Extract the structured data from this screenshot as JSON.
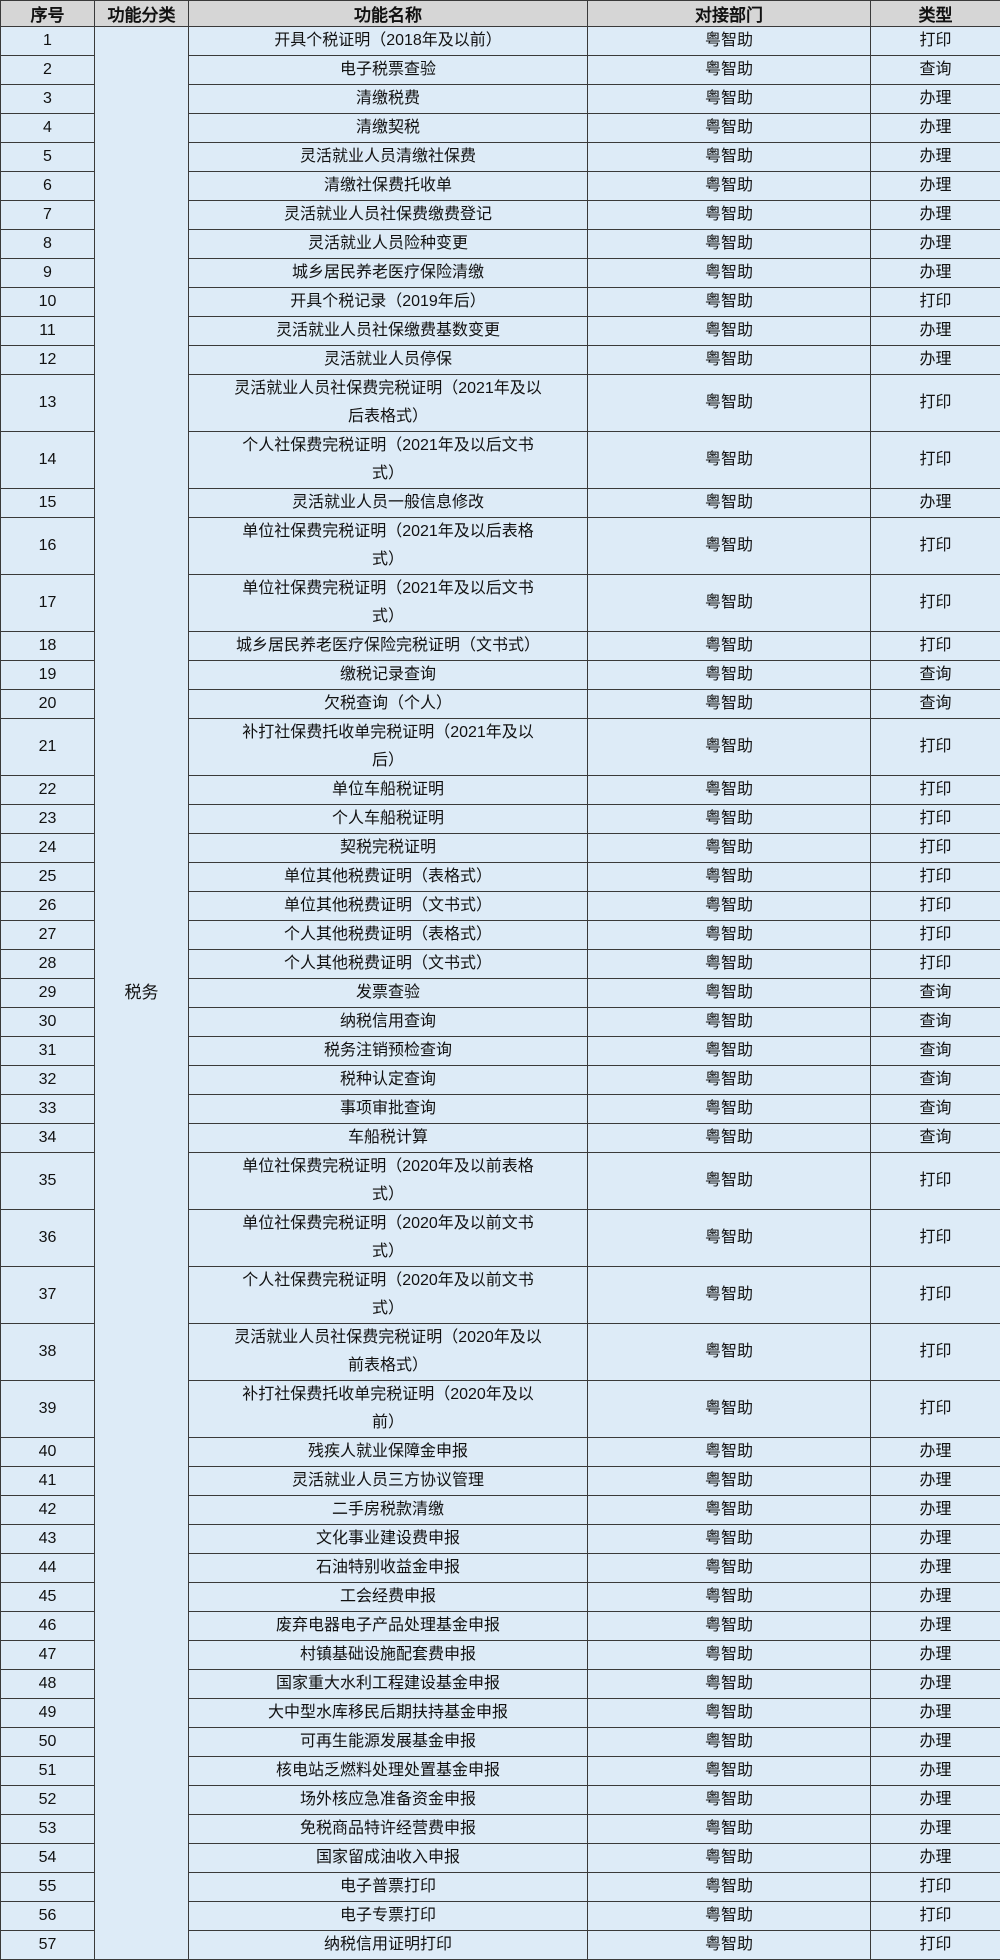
{
  "headers": [
    "序号",
    "功能分类",
    "功能名称",
    "对接部门",
    "类型"
  ],
  "category": "税务",
  "colors": {
    "header_bg": "#d6d6d6",
    "cell_bg": "#ddebf7",
    "border": "#3a3a3a"
  },
  "rows": [
    [
      "1",
      "开具个税证明（2018年及以前）",
      "粤智助",
      "打印"
    ],
    [
      "2",
      "电子税票查验",
      "粤智助",
      "查询"
    ],
    [
      "3",
      "清缴税费",
      "粤智助",
      "办理"
    ],
    [
      "4",
      "清缴契税",
      "粤智助",
      "办理"
    ],
    [
      "5",
      "灵活就业人员清缴社保费",
      "粤智助",
      "办理"
    ],
    [
      "6",
      "清缴社保费托收单",
      "粤智助",
      "办理"
    ],
    [
      "7",
      "灵活就业人员社保费缴费登记",
      "粤智助",
      "办理"
    ],
    [
      "8",
      "灵活就业人员险种变更",
      "粤智助",
      "办理"
    ],
    [
      "9",
      "城乡居民养老医疗保险清缴",
      "粤智助",
      "办理"
    ],
    [
      "10",
      "开具个税记录（2019年后）",
      "粤智助",
      "打印"
    ],
    [
      "11",
      "灵活就业人员社保缴费基数变更",
      "粤智助",
      "办理"
    ],
    [
      "12",
      "灵活就业人员停保",
      "粤智助",
      "办理"
    ],
    [
      "13",
      "灵活就业人员社保费完税证明（2021年及以\n后表格式）",
      "粤智助",
      "打印"
    ],
    [
      "14",
      "个人社保费完税证明（2021年及以后文书\n式）",
      "粤智助",
      "打印"
    ],
    [
      "15",
      "灵活就业人员一般信息修改",
      "粤智助",
      "办理"
    ],
    [
      "16",
      "单位社保费完税证明（2021年及以后表格\n式）",
      "粤智助",
      "打印"
    ],
    [
      "17",
      "单位社保费完税证明（2021年及以后文书\n式）",
      "粤智助",
      "打印"
    ],
    [
      "18",
      "城乡居民养老医疗保险完税证明（文书式）",
      "粤智助",
      "打印"
    ],
    [
      "19",
      "缴税记录查询",
      "粤智助",
      "查询"
    ],
    [
      "20",
      "欠税查询（个人）",
      "粤智助",
      "查询"
    ],
    [
      "21",
      "补打社保费托收单完税证明（2021年及以\n后）",
      "粤智助",
      "打印"
    ],
    [
      "22",
      "单位车船税证明",
      "粤智助",
      "打印"
    ],
    [
      "23",
      "个人车船税证明",
      "粤智助",
      "打印"
    ],
    [
      "24",
      "契税完税证明",
      "粤智助",
      "打印"
    ],
    [
      "25",
      "单位其他税费证明（表格式）",
      "粤智助",
      "打印"
    ],
    [
      "26",
      "单位其他税费证明（文书式）",
      "粤智助",
      "打印"
    ],
    [
      "27",
      "个人其他税费证明（表格式）",
      "粤智助",
      "打印"
    ],
    [
      "28",
      "个人其他税费证明（文书式）",
      "粤智助",
      "打印"
    ],
    [
      "29",
      "发票查验",
      "粤智助",
      "查询"
    ],
    [
      "30",
      "纳税信用查询",
      "粤智助",
      "查询"
    ],
    [
      "31",
      "税务注销预检查询",
      "粤智助",
      "查询"
    ],
    [
      "32",
      "税种认定查询",
      "粤智助",
      "查询"
    ],
    [
      "33",
      "事项审批查询",
      "粤智助",
      "查询"
    ],
    [
      "34",
      "车船税计算",
      "粤智助",
      "查询"
    ],
    [
      "35",
      "单位社保费完税证明（2020年及以前表格\n式）",
      "粤智助",
      "打印"
    ],
    [
      "36",
      "单位社保费完税证明（2020年及以前文书\n式）",
      "粤智助",
      "打印"
    ],
    [
      "37",
      "个人社保费完税证明（2020年及以前文书\n式）",
      "粤智助",
      "打印"
    ],
    [
      "38",
      "灵活就业人员社保费完税证明（2020年及以\n前表格式）",
      "粤智助",
      "打印"
    ],
    [
      "39",
      "补打社保费托收单完税证明（2020年及以\n前）",
      "粤智助",
      "打印"
    ],
    [
      "40",
      "残疾人就业保障金申报",
      "粤智助",
      "办理"
    ],
    [
      "41",
      "灵活就业人员三方协议管理",
      "粤智助",
      "办理"
    ],
    [
      "42",
      "二手房税款清缴",
      "粤智助",
      "办理"
    ],
    [
      "43",
      "文化事业建设费申报",
      "粤智助",
      "办理"
    ],
    [
      "44",
      "石油特别收益金申报",
      "粤智助",
      "办理"
    ],
    [
      "45",
      "工会经费申报",
      "粤智助",
      "办理"
    ],
    [
      "46",
      "废弃电器电子产品处理基金申报",
      "粤智助",
      "办理"
    ],
    [
      "47",
      "村镇基础设施配套费申报",
      "粤智助",
      "办理"
    ],
    [
      "48",
      "国家重大水利工程建设基金申报",
      "粤智助",
      "办理"
    ],
    [
      "49",
      "大中型水库移民后期扶持基金申报",
      "粤智助",
      "办理"
    ],
    [
      "50",
      "可再生能源发展基金申报",
      "粤智助",
      "办理"
    ],
    [
      "51",
      "核电站乏燃料处理处置基金申报",
      "粤智助",
      "办理"
    ],
    [
      "52",
      "场外核应急准备资金申报",
      "粤智助",
      "办理"
    ],
    [
      "53",
      "免税商品特许经营费申报",
      "粤智助",
      "办理"
    ],
    [
      "54",
      "国家留成油收入申报",
      "粤智助",
      "办理"
    ],
    [
      "55",
      "电子普票打印",
      "粤智助",
      "打印"
    ],
    [
      "56",
      "电子专票打印",
      "粤智助",
      "打印"
    ],
    [
      "57",
      "纳税信用证明打印",
      "粤智助",
      "打印"
    ]
  ]
}
